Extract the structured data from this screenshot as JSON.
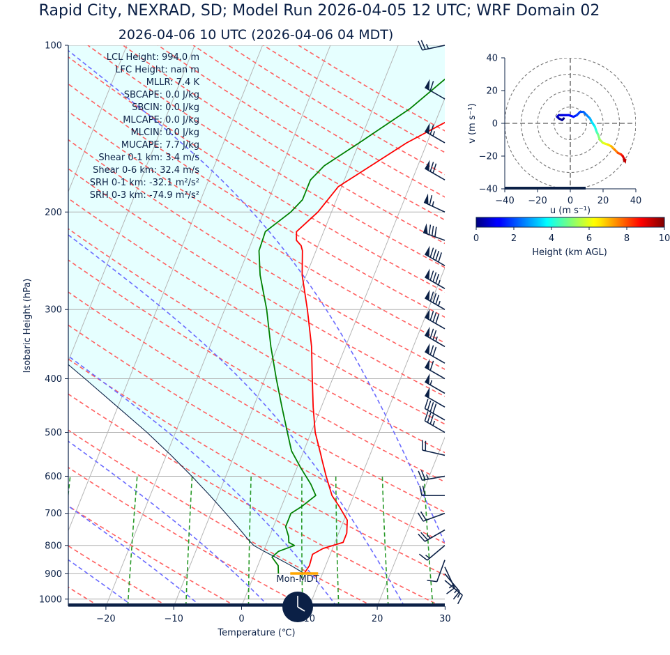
{
  "header": {
    "title": "Rapid City, NEXRAD, SD; Model Run 2026-04-05 12 UTC; WRF Domain 02",
    "subtitle": "2026-04-06 10 UTC  (2026-04-06 04 MDT)"
  },
  "colors": {
    "navy": "#0b2046",
    "temperature": "#ff0000",
    "dewpoint": "#008000",
    "parcel": "#0b2046",
    "dry_adiabat": "#ff6060",
    "moist_adiabat": "#6a6aff",
    "mixing_ratio": "#2a9a2a",
    "cape_fill": "#e6ffff",
    "lcl_marker": "#ffa500"
  },
  "stats": [
    "LCL Height: 994.0 m",
    "LFC Height: nan m",
    "MLLR: 7.4 K",
    "SBCAPE: 0.0 J/kg",
    "SBCIN: 0.0 J/kg",
    "MLCAPE: 0.0 J/kg",
    "MLCIN: 0.0 J/kg",
    "MUCAPE: 7.7 J/kg",
    "Shear 0-1 km: 3.4 m/s",
    "Shear 0-6 km: 32.4 m/s",
    "SRH 0-1 km: -32.1 m²/s²",
    "SRH 0-3 km: -74.9 m²/s²"
  ],
  "clock_label": "Mon-MDT",
  "chart_data": [
    {
      "type": "line",
      "kind": "skew-t log-p sounding",
      "xlabel": "Temperature (℃)",
      "ylabel": "Isobaric Height (hPa)",
      "xlim": [
        -25,
        30
      ],
      "ylim": [
        1030,
        100
      ],
      "y_scale": "log",
      "xticks": [
        -20,
        -10,
        0,
        10,
        20,
        30
      ],
      "yticks": [
        100,
        200,
        300,
        400,
        500,
        600,
        700,
        800,
        900,
        1000
      ],
      "grid": true,
      "series": [
        {
          "role": "temperature",
          "points": [
            [
              899,
              7.3
            ],
            [
              870,
              7.6
            ],
            [
              830,
              7.4
            ],
            [
              810,
              8.6
            ],
            [
              790,
              11.2
            ],
            [
              760,
              11.2
            ],
            [
              720,
              10.5
            ],
            [
              680,
              8.5
            ],
            [
              650,
              6.8
            ],
            [
              600,
              4.8
            ],
            [
              560,
              3.2
            ],
            [
              550,
              2.8
            ],
            [
              500,
              0.6
            ],
            [
              450,
              -1.2
            ],
            [
              400,
              -3.0
            ],
            [
              350,
              -5.0
            ],
            [
              300,
              -7.8
            ],
            [
              260,
              -10.6
            ],
            [
              235,
              -12.0
            ],
            [
              230,
              -12.5
            ],
            [
              225,
              -13.5
            ],
            [
              217,
              -14.0
            ],
            [
              200,
              -12.0
            ],
            [
              180,
              -10.5
            ],
            [
              150,
              -3.0
            ],
            [
              130,
              4.5
            ],
            [
              115,
              9.5
            ],
            [
              100,
              13.5
            ]
          ]
        },
        {
          "role": "dewpoint",
          "points": [
            [
              899,
              3.5
            ],
            [
              870,
              3.0
            ],
            [
              840,
              1.6
            ],
            [
              820,
              2.2
            ],
            [
              800,
              4.2
            ],
            [
              790,
              3.2
            ],
            [
              770,
              2.8
            ],
            [
              740,
              1.8
            ],
            [
              700,
              1.8
            ],
            [
              680,
              3.0
            ],
            [
              650,
              4.4
            ],
            [
              620,
              3.0
            ],
            [
              580,
              0.6
            ],
            [
              540,
              -1.8
            ],
            [
              500,
              -3.5
            ],
            [
              450,
              -5.8
            ],
            [
              400,
              -8.3
            ],
            [
              350,
              -11.0
            ],
            [
              300,
              -13.8
            ],
            [
              260,
              -16.8
            ],
            [
              235,
              -18.4
            ],
            [
              217,
              -18.6
            ],
            [
              200,
              -16.0
            ],
            [
              190,
              -15.0
            ],
            [
              175,
              -15.0
            ],
            [
              165,
              -13.8
            ],
            [
              150,
              -10.0
            ],
            [
              130,
              -4.5
            ],
            [
              100,
              2.8
            ]
          ]
        },
        {
          "role": "parcel",
          "points": [
            [
              899,
              7.3
            ],
            [
              870,
              4.9
            ],
            [
              840,
              2.1
            ],
            [
              820,
              0.1
            ],
            [
              800,
              -1.8
            ],
            [
              780,
              -3.0
            ],
            [
              750,
              -4.7
            ],
            [
              700,
              -7.8
            ],
            [
              650,
              -11.2
            ],
            [
              600,
              -15.0
            ],
            [
              550,
              -19.3
            ],
            [
              500,
              -24.2
            ],
            [
              450,
              -30.0
            ],
            [
              400,
              -36.5
            ],
            [
              350,
              -44.0
            ],
            [
              300,
              -52.5
            ],
            [
              250,
              -63.0
            ],
            [
              200,
              -76.0
            ],
            [
              150,
              -93.0
            ],
            [
              100,
              -118.0
            ]
          ]
        }
      ],
      "lcl_pressure": 899,
      "wind_barbs": [
        {
          "p": 100,
          "speed": 25,
          "dir": 258
        },
        {
          "p": 125,
          "speed": 60,
          "dir": 300
        },
        {
          "p": 150,
          "speed": 65,
          "dir": 300
        },
        {
          "p": 175,
          "speed": 70,
          "dir": 300
        },
        {
          "p": 200,
          "speed": 65,
          "dir": 295
        },
        {
          "p": 225,
          "speed": 80,
          "dir": 290
        },
        {
          "p": 250,
          "speed": 90,
          "dir": 300
        },
        {
          "p": 275,
          "speed": 85,
          "dir": 300
        },
        {
          "p": 300,
          "speed": 85,
          "dir": 300
        },
        {
          "p": 325,
          "speed": 80,
          "dir": 300
        },
        {
          "p": 350,
          "speed": 75,
          "dir": 300
        },
        {
          "p": 375,
          "speed": 70,
          "dir": 300
        },
        {
          "p": 400,
          "speed": 60,
          "dir": 300
        },
        {
          "p": 425,
          "speed": 55,
          "dir": 300
        },
        {
          "p": 450,
          "speed": 50,
          "dir": 300
        },
        {
          "p": 475,
          "speed": 40,
          "dir": 300
        },
        {
          "p": 500,
          "speed": 35,
          "dir": 300
        },
        {
          "p": 550,
          "speed": 20,
          "dir": 283
        },
        {
          "p": 600,
          "speed": 25,
          "dir": 260
        },
        {
          "p": 650,
          "speed": 20,
          "dir": 270
        },
        {
          "p": 700,
          "speed": 20,
          "dir": 250
        },
        {
          "p": 750,
          "speed": 25,
          "dir": 240
        },
        {
          "p": 800,
          "speed": 15,
          "dir": 230
        },
        {
          "p": 850,
          "speed": 10,
          "dir": 200
        },
        {
          "p": 875,
          "speed": 15,
          "dir": 155
        },
        {
          "p": 900,
          "speed": 15,
          "dir": 140
        },
        {
          "p": 925,
          "speed": 15,
          "dir": 130
        }
      ]
    },
    {
      "type": "line",
      "kind": "hodograph",
      "xlabel": "u (m s⁻¹)",
      "ylabel": "v (m s⁻¹)",
      "xlim": [
        -40,
        40
      ],
      "ylim": [
        -40,
        40
      ],
      "ticks": [
        -40,
        -20,
        0,
        20,
        40
      ],
      "rings": [
        10,
        20,
        30,
        40
      ],
      "colorbar": {
        "label": "Height (km AGL)",
        "min": 0,
        "max": 10,
        "ticks": [
          0,
          2,
          4,
          6,
          8,
          10
        ],
        "colormap": "jet"
      },
      "points": [
        {
          "h": 0.0,
          "u": -4,
          "v": 3
        },
        {
          "h": 0.2,
          "u": -5,
          "v": 2
        },
        {
          "h": 0.4,
          "u": -7,
          "v": 3
        },
        {
          "h": 0.6,
          "u": -8,
          "v": 4
        },
        {
          "h": 0.8,
          "u": -7,
          "v": 5
        },
        {
          "h": 1.0,
          "u": -5,
          "v": 5
        },
        {
          "h": 1.3,
          "u": -1,
          "v": 5
        },
        {
          "h": 1.5,
          "u": 2,
          "v": 4
        },
        {
          "h": 1.8,
          "u": 4,
          "v": 5
        },
        {
          "h": 2.0,
          "u": 6,
          "v": 7
        },
        {
          "h": 2.3,
          "u": 8,
          "v": 7
        },
        {
          "h": 2.6,
          "u": 10,
          "v": 5
        },
        {
          "h": 3.0,
          "u": 12,
          "v": 3
        },
        {
          "h": 3.5,
          "u": 13,
          "v": 1
        },
        {
          "h": 4.0,
          "u": 15,
          "v": -2
        },
        {
          "h": 4.5,
          "u": 16,
          "v": -5
        },
        {
          "h": 5.0,
          "u": 17,
          "v": -7
        },
        {
          "h": 5.5,
          "u": 18,
          "v": -10
        },
        {
          "h": 6.0,
          "u": 20,
          "v": -12
        },
        {
          "h": 6.5,
          "u": 23,
          "v": -13
        },
        {
          "h": 7.0,
          "u": 25,
          "v": -14
        },
        {
          "h": 7.5,
          "u": 27,
          "v": -16
        },
        {
          "h": 8.0,
          "u": 29,
          "v": -18
        },
        {
          "h": 8.5,
          "u": 31,
          "v": -19
        },
        {
          "h": 9.0,
          "u": 32,
          "v": -20
        },
        {
          "h": 9.5,
          "u": 33,
          "v": -22
        },
        {
          "h": 10.0,
          "u": 33,
          "v": -23
        }
      ]
    }
  ]
}
